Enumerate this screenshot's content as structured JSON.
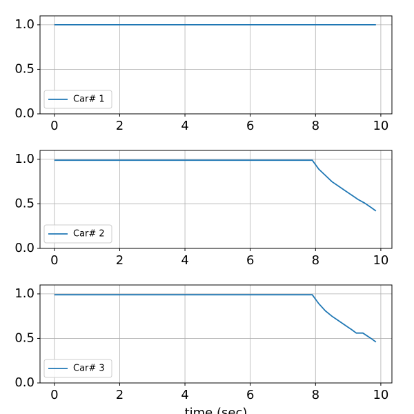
{
  "chart_data": [
    {
      "type": "line",
      "x": [
        0,
        7.9,
        8.1,
        8.3,
        8.5,
        8.7,
        8.9,
        9.1,
        9.3,
        9.5,
        9.7,
        9.85
      ],
      "series": [
        {
          "name": "Car# 1",
          "color": "#1f77b4",
          "values": [
            1,
            1,
            1,
            1,
            1,
            1,
            1,
            1,
            1,
            1,
            1,
            1
          ]
        }
      ],
      "xlim": [
        -0.44,
        10.34
      ],
      "ylim": [
        0,
        1.1
      ],
      "xticks": [
        0,
        2,
        4,
        6,
        8,
        10
      ],
      "yticks": [
        {
          "value": 0,
          "label": "0.0"
        },
        {
          "value": 0.5,
          "label": "0.5"
        },
        {
          "value": 1,
          "label": "1.0"
        }
      ],
      "grid": true,
      "legend": "lower left"
    },
    {
      "type": "line",
      "x": [
        0,
        7.9,
        8.1,
        8.3,
        8.5,
        8.7,
        8.9,
        9.1,
        9.3,
        9.5,
        9.7,
        9.85
      ],
      "series": [
        {
          "name": "Car# 2",
          "color": "#1f77b4",
          "values": [
            0.99,
            0.99,
            0.89,
            0.82,
            0.75,
            0.7,
            0.65,
            0.6,
            0.55,
            0.51,
            0.46,
            0.42
          ]
        }
      ],
      "xlim": [
        -0.44,
        10.34
      ],
      "ylim": [
        0,
        1.1
      ],
      "xticks": [
        0,
        2,
        4,
        6,
        8,
        10
      ],
      "yticks": [
        {
          "value": 0,
          "label": "0.0"
        },
        {
          "value": 0.5,
          "label": "0.5"
        },
        {
          "value": 1,
          "label": "1.0"
        }
      ],
      "grid": true,
      "legend": "lower left"
    },
    {
      "type": "line",
      "x": [
        0,
        7.9,
        8.1,
        8.3,
        8.5,
        8.7,
        8.9,
        9.1,
        9.25,
        9.45,
        9.7,
        9.85
      ],
      "series": [
        {
          "name": "Car# 3",
          "color": "#1f77b4",
          "values": [
            0.99,
            0.99,
            0.89,
            0.81,
            0.75,
            0.7,
            0.65,
            0.6,
            0.56,
            0.56,
            0.5,
            0.46
          ]
        }
      ],
      "xlim": [
        -0.44,
        10.34
      ],
      "ylim": [
        0,
        1.1
      ],
      "xticks": [
        0,
        2,
        4,
        6,
        8,
        10
      ],
      "yticks": [
        {
          "value": 0,
          "label": "0.0"
        },
        {
          "value": 0.5,
          "label": "0.5"
        },
        {
          "value": 1,
          "label": "1.0"
        }
      ],
      "grid": true,
      "legend": "lower left",
      "xlabel": "time (sec)"
    }
  ]
}
